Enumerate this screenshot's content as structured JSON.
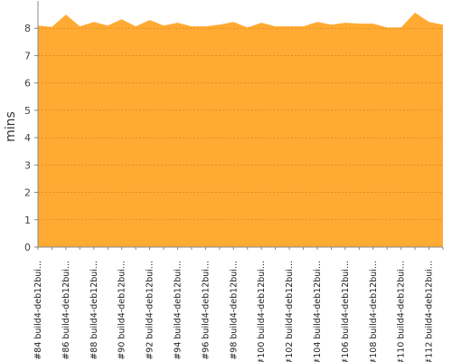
{
  "chart_data": {
    "type": "area",
    "y_label": "mins",
    "color": "#ffaa33",
    "grid": true,
    "categories": [
      "#84 build4-deb12bui...",
      null,
      "#86 build4-deb12bui...",
      null,
      "#88 build4-deb12bui...",
      null,
      "#90 build4-deb12bui...",
      null,
      "#92 build4-deb12bui...",
      null,
      "#94 build4-deb12bui...",
      null,
      "#96 build4-deb12bui...",
      null,
      "#98 build4-deb12bui...",
      null,
      "#100 build4-deb12bui...",
      null,
      "#102 build4-deb12bui...",
      null,
      "#104 build4-deb12bui...",
      null,
      "#106 build4-deb12bui...",
      null,
      "#108 build4-deb12bui...",
      null,
      "#110 build4-deb12bui...",
      null,
      "#112 build4-deb12bui...",
      null
    ],
    "values": [
      8.1,
      8.05,
      8.5,
      8.07,
      8.23,
      8.1,
      8.33,
      8.07,
      8.3,
      8.1,
      8.2,
      8.07,
      8.07,
      8.13,
      8.23,
      8.03,
      8.2,
      8.07,
      8.07,
      8.07,
      8.23,
      8.13,
      8.2,
      8.17,
      8.17,
      8.03,
      8.03,
      8.57,
      8.23,
      8.13
    ],
    "ylim": [
      0,
      9
    ],
    "yticks": [
      0,
      1,
      2,
      3,
      4,
      5,
      6,
      7,
      8
    ]
  }
}
